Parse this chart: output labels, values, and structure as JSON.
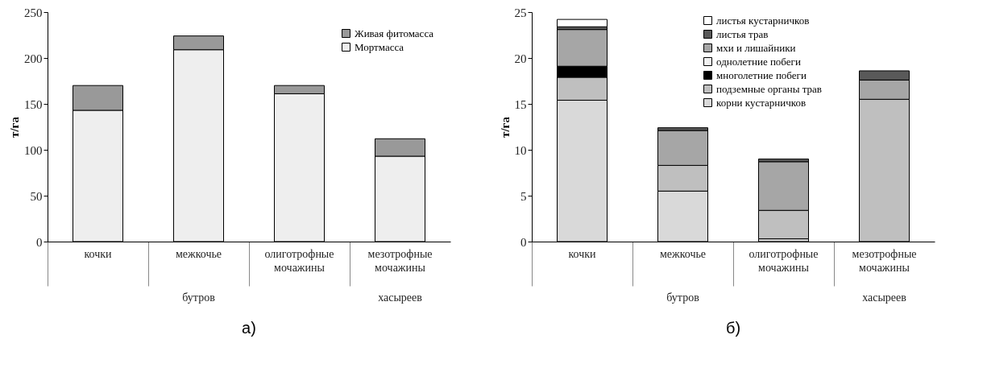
{
  "chart_data": [
    {
      "type": "bar",
      "stacked": true,
      "ylabel": "т/га",
      "categories": [
        "кочки",
        "межкочье",
        "олиготрофные мочажины",
        "мезотрофные мочажины"
      ],
      "ylim": [
        0,
        250
      ],
      "yticks": [
        0,
        50,
        100,
        150,
        200,
        250
      ],
      "grid": false,
      "legend": "top right",
      "series": [
        {
          "name": "Мортмасса",
          "color": "#eeeeee",
          "values": [
            143,
            209,
            161,
            93
          ]
        },
        {
          "name": "Живая фитомасса",
          "color": "#999999",
          "values": [
            27,
            15,
            9,
            19
          ]
        }
      ],
      "annotations": [
        "бутров",
        "хасыреев",
        "а)"
      ]
    },
    {
      "type": "bar",
      "stacked": true,
      "ylabel": "т/га",
      "categories": [
        "кочки",
        "межкочье",
        "олиготрофные мочажины",
        "мезотрофные мочажины"
      ],
      "ylim": [
        0,
        25
      ],
      "yticks": [
        0,
        5,
        10,
        15,
        20,
        25
      ],
      "grid": false,
      "legend": "top",
      "series": [
        {
          "name": "корни кустарничков",
          "color": "#d9d9d9",
          "values": [
            15.4,
            5.5,
            0.3,
            null
          ]
        },
        {
          "name": "подземные органы трав",
          "color": "#bfbfbf",
          "values": [
            2.5,
            2.8,
            3.1,
            15.5
          ]
        },
        {
          "name": "многолетние побеги",
          "color": "#000000",
          "values": [
            1.2,
            null,
            null,
            null
          ]
        },
        {
          "name": "однолетние побеги",
          "color": "#f2f2f2",
          "values": [
            null,
            null,
            null,
            null
          ]
        },
        {
          "name": "мхи и лишайники",
          "color": "#a6a6a6",
          "values": [
            4.0,
            3.8,
            5.3,
            2.1
          ]
        },
        {
          "name": "листья трав",
          "color": "#595959",
          "values": [
            0.3,
            0.3,
            0.3,
            1.0
          ]
        },
        {
          "name": "листья кустарничков",
          "color": "#ffffff",
          "values": [
            0.8,
            null,
            null,
            null
          ]
        }
      ],
      "annotations": [
        "бутров",
        "хасыреев",
        "б)"
      ]
    }
  ]
}
